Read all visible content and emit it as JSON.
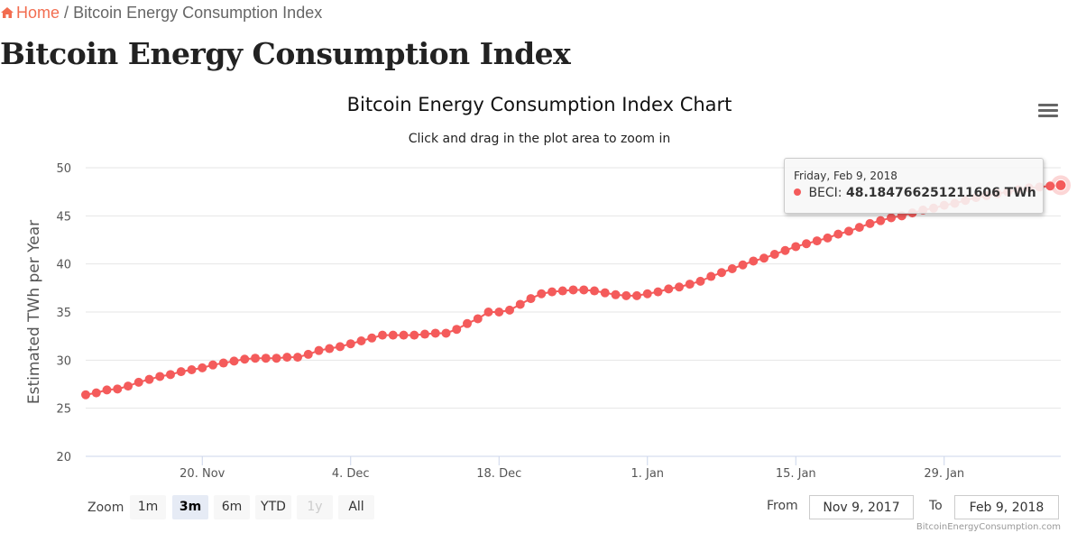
{
  "breadcrumb": {
    "home_label": "Home",
    "separator": "/",
    "current": "Bitcoin Energy Consumption Index",
    "home_icon": "home-icon"
  },
  "page": {
    "title": "Bitcoin Energy Consumption Index"
  },
  "menu": {
    "icon": "hamburger-menu-icon"
  },
  "colors": {
    "series": "#f45b5b",
    "accent": "#f26d50"
  },
  "tooltip": {
    "date": "Friday, Feb 9, 2018",
    "series_label": "BECI:",
    "value": "48.184766251211606 TWh"
  },
  "range_selector": {
    "zoom_label": "Zoom",
    "buttons": [
      {
        "label": "1m",
        "state": "normal"
      },
      {
        "label": "3m",
        "state": "active"
      },
      {
        "label": "6m",
        "state": "normal"
      },
      {
        "label": "YTD",
        "state": "normal"
      },
      {
        "label": "1y",
        "state": "disabled"
      },
      {
        "label": "All",
        "state": "normal"
      }
    ],
    "from_label": "From",
    "from_value": "Nov 9, 2017",
    "to_label": "To",
    "to_value": "Feb 9, 2018"
  },
  "credits": "BitcoinEnergyConsumption.com",
  "chart_data": {
    "type": "line",
    "title": "Bitcoin Energy Consumption Index Chart",
    "subtitle": "Click and drag in the plot area to zoom in",
    "xlabel": "",
    "ylabel": "Estimated TWh per Year",
    "ylim": [
      20,
      50
    ],
    "yticks": [
      20,
      25,
      30,
      35,
      40,
      45,
      50
    ],
    "x_start": "2017-11-09",
    "x_end": "2018-02-09",
    "x_interval": "1 day",
    "xticks": [
      {
        "label": "20. Nov",
        "day": 11
      },
      {
        "label": "4. Dec",
        "day": 25
      },
      {
        "label": "18. Dec",
        "day": 39
      },
      {
        "label": "1. Jan",
        "day": 53
      },
      {
        "label": "15. Jan",
        "day": 67
      },
      {
        "label": "29. Jan",
        "day": 81
      }
    ],
    "grid": true,
    "legend": "none",
    "series": [
      {
        "name": "BECI",
        "color": "#f45b5b",
        "values": [
          26.4,
          26.6,
          26.9,
          27.0,
          27.3,
          27.7,
          28.0,
          28.3,
          28.5,
          28.8,
          29.0,
          29.2,
          29.5,
          29.7,
          29.9,
          30.1,
          30.2,
          30.2,
          30.2,
          30.3,
          30.3,
          30.6,
          31.0,
          31.2,
          31.4,
          31.7,
          32.0,
          32.3,
          32.6,
          32.6,
          32.6,
          32.6,
          32.7,
          32.8,
          32.8,
          33.2,
          33.8,
          34.3,
          35.0,
          35.0,
          35.2,
          35.8,
          36.4,
          36.9,
          37.1,
          37.2,
          37.3,
          37.3,
          37.2,
          37.0,
          36.8,
          36.7,
          36.7,
          36.9,
          37.1,
          37.4,
          37.6,
          37.9,
          38.2,
          38.7,
          39.1,
          39.5,
          39.9,
          40.3,
          40.6,
          41.0,
          41.4,
          41.8,
          42.1,
          42.4,
          42.7,
          43.1,
          43.4,
          43.8,
          44.2,
          44.5,
          44.8,
          45.0,
          45.3,
          45.6,
          45.8,
          46.1,
          46.3,
          46.6,
          46.9,
          47.1,
          47.3,
          47.5,
          47.7,
          47.9,
          48.0,
          48.1,
          48.184766251211606
        ]
      }
    ],
    "highlighted_point": {
      "date": "2018-02-09",
      "value": 48.184766251211606
    }
  }
}
